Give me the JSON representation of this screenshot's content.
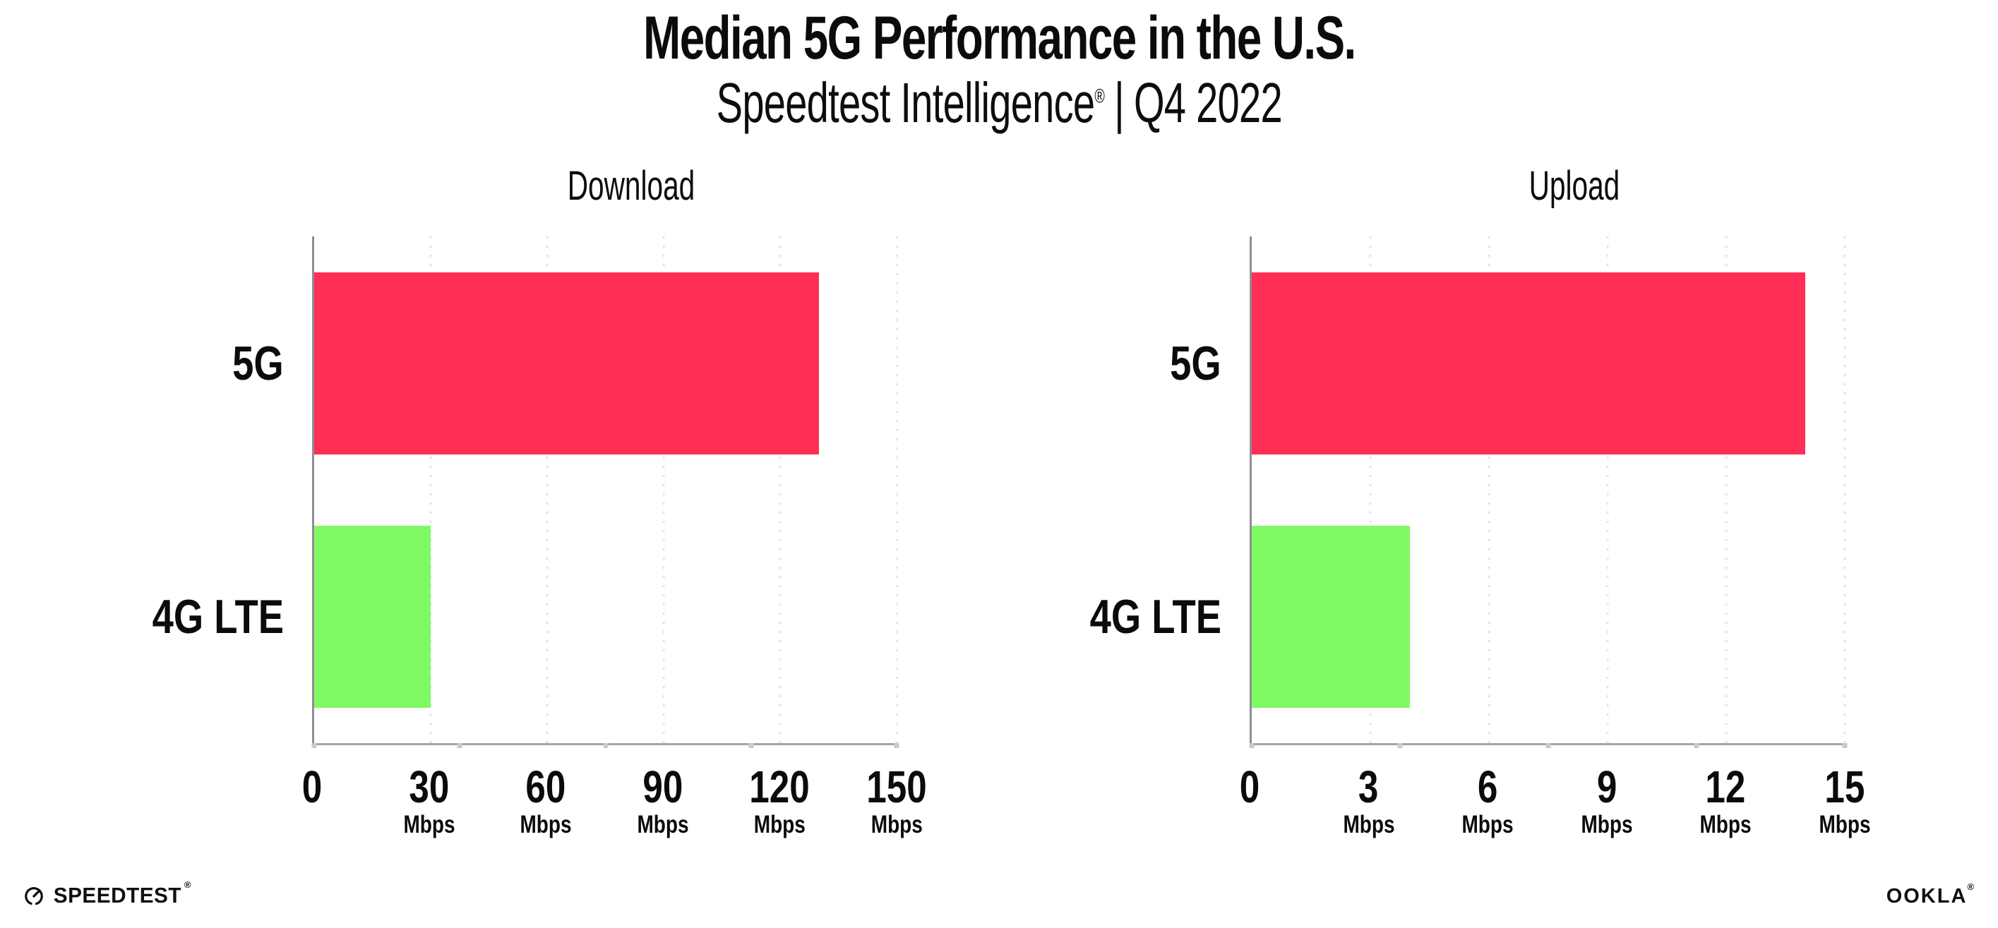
{
  "header": {
    "title": "Median 5G Performance in the U.S.",
    "subtitle": {
      "product": "Speedtest Intelligence",
      "reg": "®",
      "separator": "|",
      "period": "Q4 2022"
    }
  },
  "chart_data": [
    {
      "type": "bar",
      "orientation": "horizontal",
      "title": "Download",
      "categories": [
        "5G",
        "4G LTE"
      ],
      "values": [
        130,
        30
      ],
      "unit": "Mbps",
      "xlim": [
        0,
        150
      ],
      "xticks": [
        0,
        30,
        60,
        90,
        120,
        150
      ],
      "bar_colors": [
        "#FF2E56",
        "#7FFA63"
      ],
      "grid": "dotted-vertical",
      "legend": "none"
    },
    {
      "type": "bar",
      "orientation": "horizontal",
      "title": "Upload",
      "categories": [
        "5G",
        "4G LTE"
      ],
      "values": [
        14,
        4
      ],
      "unit": "Mbps",
      "xlim": [
        0,
        15
      ],
      "xticks": [
        0,
        3,
        6,
        9,
        12,
        15
      ],
      "bar_colors": [
        "#FF2E56",
        "#7FFA63"
      ],
      "grid": "dotted-vertical",
      "legend": "none"
    }
  ],
  "colors": {
    "bar_5g": "#FF2E56",
    "bar_4g_lte": "#7FFA63",
    "gridline": "#E2E2EC",
    "y_axis": "#8E8E96",
    "x_axis": "#A4A4AC",
    "axis_tick_dot": "#C9C9D4",
    "text": "#0B0B0B",
    "background": "#FFFFFF"
  },
  "icons": {
    "speedtest_gauge": "gauge-icon"
  },
  "footer": {
    "speedtest": {
      "label": "SPEEDTEST",
      "mark": "®"
    },
    "ookla": {
      "label": "OOKLA",
      "mark": "®"
    }
  }
}
